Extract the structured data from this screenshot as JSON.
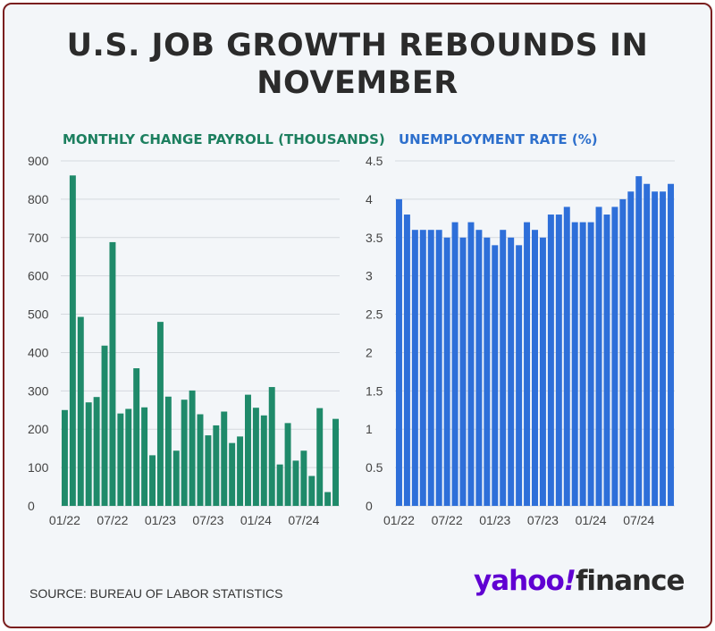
{
  "headline": "U.S. JOB GROWTH REBOUNDS IN NOVEMBER",
  "source": "SOURCE: BUREAU OF LABOR STATISTICS",
  "logo": {
    "yahoo": "yahoo",
    "bang": "!",
    "finance": "finance"
  },
  "colors": {
    "payroll": "#1f8a6a",
    "unemployment": "#2e6fd9",
    "border": "#7a1f1f"
  },
  "chart_data": [
    {
      "type": "bar",
      "title": "MONTHLY CHANGE PAYROLL (THOUSANDS)",
      "xlabel": "",
      "ylabel": "",
      "ylim": [
        0,
        900
      ],
      "yticks": [
        "0",
        "100",
        "200",
        "300",
        "400",
        "500",
        "600",
        "700",
        "800",
        "900"
      ],
      "xtick_labels": [
        "01/22",
        "07/22",
        "01/23",
        "07/23",
        "01/24",
        "07/24"
      ],
      "categories": [
        "01/22",
        "02/22",
        "03/22",
        "04/22",
        "05/22",
        "06/22",
        "07/22",
        "08/22",
        "09/22",
        "10/22",
        "11/22",
        "12/22",
        "01/23",
        "02/23",
        "03/23",
        "04/23",
        "05/23",
        "06/23",
        "07/23",
        "08/23",
        "09/23",
        "10/23",
        "11/23",
        "12/23",
        "01/24",
        "02/24",
        "03/24",
        "04/24",
        "05/24",
        "06/24",
        "07/24",
        "08/24",
        "09/24",
        "10/24",
        "11/24"
      ],
      "values": [
        250,
        862,
        493,
        270,
        284,
        418,
        688,
        241,
        253,
        359,
        257,
        132,
        480,
        285,
        144,
        277,
        301,
        239,
        184,
        210,
        246,
        164,
        181,
        290,
        256,
        236,
        310,
        108,
        216,
        118,
        144,
        78,
        255,
        36,
        227
      ]
    },
    {
      "type": "bar",
      "title": "UNEMPLOYMENT RATE (%)",
      "xlabel": "",
      "ylabel": "",
      "ylim": [
        0,
        4.5
      ],
      "yticks": [
        "0",
        "0.5",
        "1",
        "1.5",
        "2",
        "2.5",
        "3",
        "3.5",
        "4",
        "4.5"
      ],
      "xtick_labels": [
        "01/22",
        "07/22",
        "01/23",
        "07/23",
        "01/24",
        "07/24"
      ],
      "categories": [
        "01/22",
        "02/22",
        "03/22",
        "04/22",
        "05/22",
        "06/22",
        "07/22",
        "08/22",
        "09/22",
        "10/22",
        "11/22",
        "12/22",
        "01/23",
        "02/23",
        "03/23",
        "04/23",
        "05/23",
        "06/23",
        "07/23",
        "08/23",
        "09/23",
        "10/23",
        "11/23",
        "12/23",
        "01/24",
        "02/24",
        "03/24",
        "04/24",
        "05/24",
        "06/24",
        "07/24",
        "08/24",
        "09/24",
        "10/24",
        "11/24"
      ],
      "values": [
        4.0,
        3.8,
        3.6,
        3.6,
        3.6,
        3.6,
        3.5,
        3.7,
        3.5,
        3.7,
        3.6,
        3.5,
        3.4,
        3.6,
        3.5,
        3.4,
        3.7,
        3.6,
        3.5,
        3.8,
        3.8,
        3.9,
        3.7,
        3.7,
        3.7,
        3.9,
        3.8,
        3.9,
        4.0,
        4.1,
        4.3,
        4.2,
        4.1,
        4.1,
        4.2
      ]
    }
  ]
}
